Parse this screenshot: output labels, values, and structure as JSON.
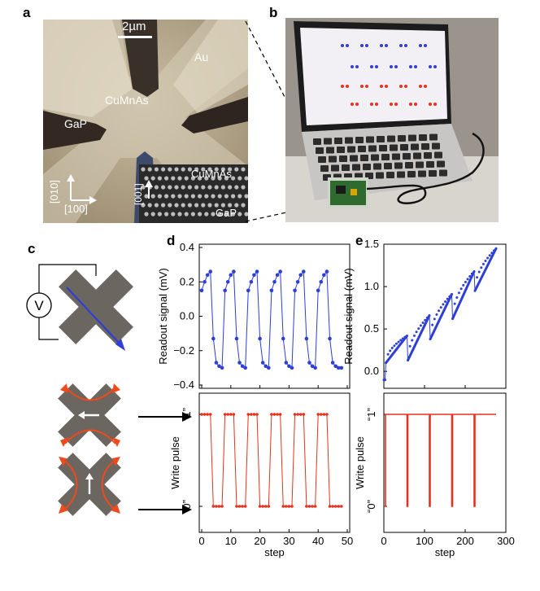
{
  "panels": {
    "a": "a",
    "b": "b",
    "c": "c",
    "d": "d",
    "e": "e"
  },
  "micrograph": {
    "scale_bar": "2µm",
    "au_label": "Au",
    "cumnas_label": "CuMnAs",
    "gap_label": "GaP",
    "dir_010": "[010]",
    "dir_100": "[100]",
    "inset_dir_001": "[001]",
    "inset_cumnas": "CuMnAs",
    "inset_gap": "GaP"
  },
  "circuit": {
    "voltmeter": "V"
  },
  "colors": {
    "blue": "#2d3fd6",
    "red": "#e8311c",
    "device": "#6b665f",
    "arrow_red": "#f04a1c"
  },
  "chart_data": [
    {
      "type": "line",
      "id": "d-top",
      "ylabel": "Readout signal (mV)",
      "xlim": [
        0,
        50
      ],
      "ylim": [
        -0.4,
        0.4
      ],
      "yticks": [
        "0.4",
        "0.2",
        "0.0",
        "−0.2",
        "−0.4"
      ],
      "series": [
        {
          "x": [
            0,
            1,
            2,
            3,
            4,
            5,
            6,
            7,
            8,
            9,
            10,
            11,
            12,
            13,
            14,
            15,
            16,
            17,
            18,
            19,
            20,
            21,
            22,
            23,
            24,
            25,
            26,
            27,
            28,
            29,
            30,
            31,
            32,
            33,
            34,
            35,
            36,
            37,
            38,
            39,
            40,
            41,
            42,
            43,
            44,
            45,
            46,
            47,
            48
          ],
          "values": [
            0.15,
            0.2,
            0.24,
            0.26,
            -0.13,
            -0.27,
            -0.29,
            -0.3,
            0.15,
            0.2,
            0.24,
            0.26,
            -0.13,
            -0.27,
            -0.29,
            -0.3,
            0.15,
            0.2,
            0.24,
            0.26,
            -0.13,
            -0.27,
            -0.29,
            -0.3,
            0.15,
            0.2,
            0.24,
            0.26,
            -0.13,
            -0.27,
            -0.29,
            -0.3,
            0.15,
            0.2,
            0.24,
            0.26,
            -0.13,
            -0.27,
            -0.29,
            -0.3,
            0.15,
            0.2,
            0.24,
            0.26,
            -0.13,
            -0.27,
            -0.29,
            -0.3,
            -0.3
          ]
        }
      ]
    },
    {
      "type": "line",
      "id": "d-bottom",
      "ylabel": "Write pulse",
      "xlabel": "step",
      "xlim": [
        0,
        50
      ],
      "xticks": [
        "0",
        "10",
        "20",
        "30",
        "40",
        "50"
      ],
      "yticks": [
        "“1”",
        "“0”"
      ],
      "series": [
        {
          "x": [
            0,
            1,
            2,
            3,
            4,
            5,
            6,
            7,
            8,
            9,
            10,
            11,
            12,
            13,
            14,
            15,
            16,
            17,
            18,
            19,
            20,
            21,
            22,
            23,
            24,
            25,
            26,
            27,
            28,
            29,
            30,
            31,
            32,
            33,
            34,
            35,
            36,
            37,
            38,
            39,
            40,
            41,
            42,
            43,
            44,
            45,
            46,
            47,
            48
          ],
          "values": [
            1,
            1,
            1,
            1,
            0,
            0,
            0,
            0,
            1,
            1,
            1,
            1,
            0,
            0,
            0,
            0,
            1,
            1,
            1,
            1,
            0,
            0,
            0,
            0,
            1,
            1,
            1,
            1,
            0,
            0,
            0,
            0,
            1,
            1,
            1,
            1,
            0,
            0,
            0,
            0,
            1,
            1,
            1,
            1,
            0,
            0,
            0,
            0,
            0
          ]
        }
      ]
    },
    {
      "type": "line",
      "id": "e-top",
      "ylabel": "Readout signal (mV)",
      "xlim": [
        0,
        300
      ],
      "ylim": [
        -0.2,
        1.5
      ],
      "yticks": [
        "1.5",
        "1.0",
        "0.5",
        "0.0"
      ],
      "segments": [
        {
          "x": [
            0,
            3
          ],
          "values": [
            -0.1,
            -0.1
          ]
        },
        {
          "x": [
            5,
            57
          ],
          "values": [
            0.1,
            0.42
          ]
        },
        {
          "x": [
            59,
            112
          ],
          "values": [
            0.13,
            0.66
          ]
        },
        {
          "x": [
            114,
            167
          ],
          "values": [
            0.38,
            0.91
          ]
        },
        {
          "x": [
            169,
            222
          ],
          "values": [
            0.62,
            1.18
          ]
        },
        {
          "x": [
            224,
            276
          ],
          "values": [
            0.95,
            1.45
          ]
        }
      ]
    },
    {
      "type": "line",
      "id": "e-bottom",
      "ylabel": "Write pulse",
      "xlabel": "step",
      "xlim": [
        0,
        300
      ],
      "xticks": [
        "0",
        "100",
        "200",
        "300"
      ],
      "yticks": [
        "“1”",
        "“0”"
      ],
      "pulses": [
        {
          "x_from": 0,
          "x_to": 4,
          "value": 0
        },
        {
          "x_from": 4,
          "x_to": 57,
          "value": 1
        },
        {
          "x_from": 57,
          "x_to": 59,
          "value": 0
        },
        {
          "x_from": 59,
          "x_to": 112,
          "value": 1
        },
        {
          "x_from": 112,
          "x_to": 114,
          "value": 0
        },
        {
          "x_from": 114,
          "x_to": 167,
          "value": 1
        },
        {
          "x_from": 167,
          "x_to": 169,
          "value": 0
        },
        {
          "x_from": 169,
          "x_to": 222,
          "value": 1
        },
        {
          "x_from": 222,
          "x_to": 224,
          "value": 0
        },
        {
          "x_from": 224,
          "x_to": 276,
          "value": 1
        }
      ]
    }
  ]
}
